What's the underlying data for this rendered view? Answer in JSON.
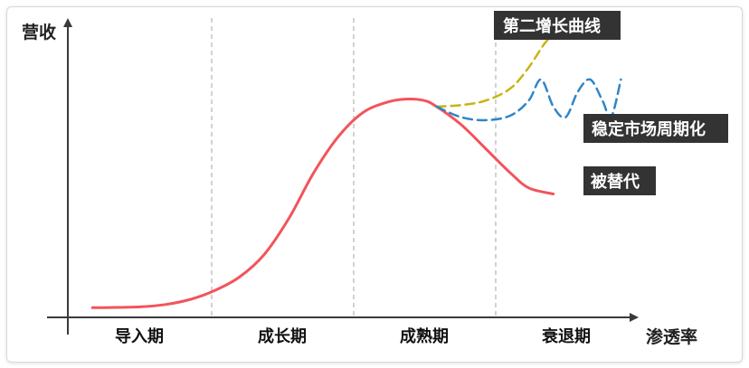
{
  "chart_data": {
    "type": "line",
    "title": "",
    "ylabel": "营收",
    "xlabel": "渗透率",
    "grid": false,
    "phases": [
      "导入期",
      "成长期",
      "成熟期",
      "衰退期"
    ],
    "series": [
      {
        "name": "",
        "color": "#f2545b",
        "style": "solid",
        "points": [
          [
            0.2,
            3.2
          ],
          [
            0.4,
            3.3
          ],
          [
            0.6,
            3.5
          ],
          [
            0.8,
            4.3
          ],
          [
            1.0,
            6.0
          ],
          [
            1.2,
            9.0
          ],
          [
            1.4,
            13.5
          ],
          [
            1.6,
            21.0
          ],
          [
            1.8,
            33.0
          ],
          [
            2.0,
            48.0
          ],
          [
            2.2,
            60.0
          ],
          [
            2.4,
            68.0
          ],
          [
            2.6,
            71.5
          ],
          [
            2.75,
            72.5
          ],
          [
            2.9,
            72.0
          ],
          [
            3.0,
            70.0
          ],
          [
            3.2,
            64.0
          ],
          [
            3.4,
            56.0
          ],
          [
            3.6,
            48.0
          ],
          [
            3.75,
            43.0
          ],
          [
            3.95,
            41.0
          ]
        ]
      },
      {
        "name": "",
        "color": "#c8b414",
        "style": "dashed",
        "points": [
          [
            3.0,
            70.0
          ],
          [
            3.2,
            70.5
          ],
          [
            3.4,
            72.0
          ],
          [
            3.6,
            76.0
          ],
          [
            3.75,
            83.0
          ],
          [
            3.9,
            92.0
          ],
          [
            4.05,
            96.5
          ],
          [
            4.3,
            97.8
          ],
          [
            4.5,
            98.0
          ]
        ]
      },
      {
        "name": "",
        "color": "#2f86c8",
        "style": "dashed",
        "points": [
          [
            3.0,
            70.0
          ],
          [
            3.2,
            66.5
          ],
          [
            3.4,
            65.5
          ],
          [
            3.6,
            67.0
          ],
          [
            3.75,
            72.0
          ],
          [
            3.85,
            79.0
          ],
          [
            3.95,
            70.0
          ],
          [
            4.05,
            66.5
          ],
          [
            4.15,
            75.0
          ],
          [
            4.25,
            79.0
          ],
          [
            4.35,
            72.0
          ],
          [
            4.42,
            66.5
          ],
          [
            4.5,
            79.0
          ]
        ]
      }
    ],
    "annotations": [
      "第二增长曲线",
      "稳定市场周期化",
      "被替代"
    ],
    "xlim": [
      0,
      4.6
    ],
    "ylim": [
      0,
      100
    ]
  }
}
